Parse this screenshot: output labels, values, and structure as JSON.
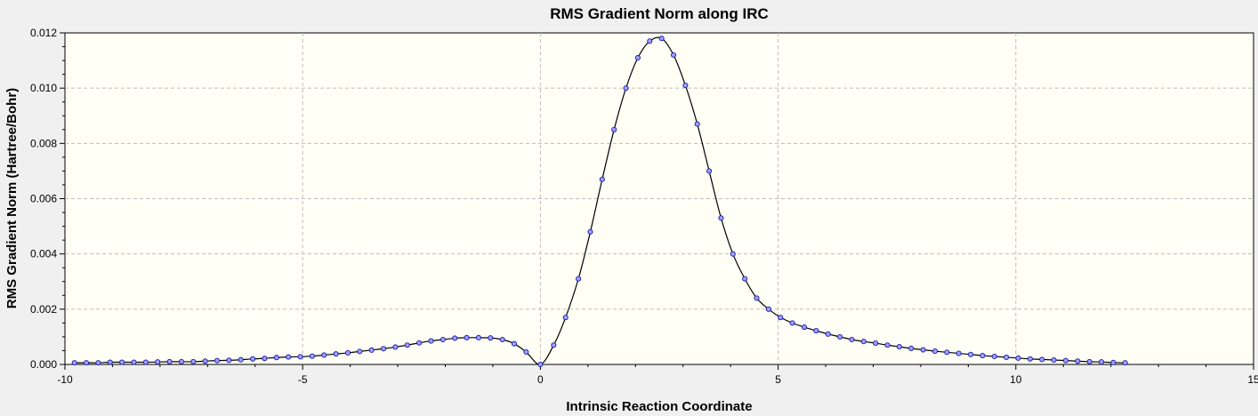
{
  "chart_data": {
    "type": "line",
    "title": "RMS Gradient Norm along IRC",
    "xlabel": "Intrinsic Reaction Coordinate",
    "ylabel": "RMS Gradient Norm (Hartree/Bohr)",
    "xlim": [
      -10,
      15
    ],
    "ylim": [
      0,
      0.012
    ],
    "xticks": [
      "-10",
      "-5",
      "0",
      "5",
      "10",
      "15"
    ],
    "yticks": [
      "0.000",
      "0.002",
      "0.004",
      "0.006",
      "0.008",
      "0.010",
      "0.012"
    ],
    "grid": true,
    "colors": {
      "plot_bg": "#fffff5",
      "line": "#000000",
      "marker_fill": "#9fa0ff",
      "marker_edge": "#1a1aa8",
      "grid": "#bdbdbd",
      "page_bg": "#f0f0f0"
    },
    "series": [
      {
        "x": [
          -9.8,
          -9.55,
          -9.3,
          -9.05,
          -8.8,
          -8.55,
          -8.3,
          -8.05,
          -7.8,
          -7.55,
          -7.3,
          -7.05,
          -6.8,
          -6.55,
          -6.3,
          -6.05,
          -5.8,
          -5.55,
          -5.3,
          -5.05,
          -4.8,
          -4.55,
          -4.3,
          -4.05,
          -3.8,
          -3.55,
          -3.3,
          -3.05,
          -2.8,
          -2.55,
          -2.3,
          -2.05,
          -1.8,
          -1.55,
          -1.3,
          -1.05,
          -0.8,
          -0.55,
          -0.3,
          0.0,
          0.28,
          0.53,
          0.8,
          1.05,
          1.3,
          1.55,
          1.8,
          2.05,
          2.3,
          2.55,
          2.8,
          3.05,
          3.3,
          3.55,
          3.8,
          4.05,
          4.3,
          4.55,
          4.8,
          5.05,
          5.3,
          5.55,
          5.8,
          6.05,
          6.3,
          6.55,
          6.8,
          7.05,
          7.3,
          7.55,
          7.8,
          8.05,
          8.3,
          8.55,
          8.8,
          9.05,
          9.3,
          9.55,
          9.8,
          10.05,
          10.3,
          10.55,
          10.8,
          11.05,
          11.3,
          11.55,
          11.8,
          12.05,
          12.3
        ],
        "y": [
          6e-05,
          6e-05,
          6e-05,
          8e-05,
          8e-05,
          8e-05,
          8e-05,
          9e-05,
          0.0001,
          0.0001,
          0.0001,
          0.00012,
          0.00014,
          0.00015,
          0.00017,
          0.0002,
          0.00022,
          0.00025,
          0.00027,
          0.00028,
          0.0003,
          0.00034,
          0.00038,
          0.00042,
          0.00047,
          0.00052,
          0.00057,
          0.00063,
          0.0007,
          0.00078,
          0.00085,
          0.0009,
          0.00095,
          0.00097,
          0.00097,
          0.00096,
          0.0009,
          0.00075,
          0.00045,
          0.0,
          0.0007,
          0.0017,
          0.0031,
          0.0048,
          0.0067,
          0.0085,
          0.01,
          0.0111,
          0.0117,
          0.0118,
          0.0112,
          0.0101,
          0.0087,
          0.007,
          0.0053,
          0.004,
          0.0031,
          0.0024,
          0.002,
          0.0017,
          0.0015,
          0.00135,
          0.00122,
          0.0011,
          0.001,
          0.0009,
          0.00083,
          0.00077,
          0.0007,
          0.00064,
          0.00058,
          0.00053,
          0.00048,
          0.00044,
          0.0004,
          0.00036,
          0.00032,
          0.00029,
          0.00026,
          0.00023,
          0.0002,
          0.00018,
          0.00016,
          0.00014,
          0.00012,
          0.0001,
          9e-05,
          7e-05,
          6e-05
        ]
      }
    ]
  }
}
